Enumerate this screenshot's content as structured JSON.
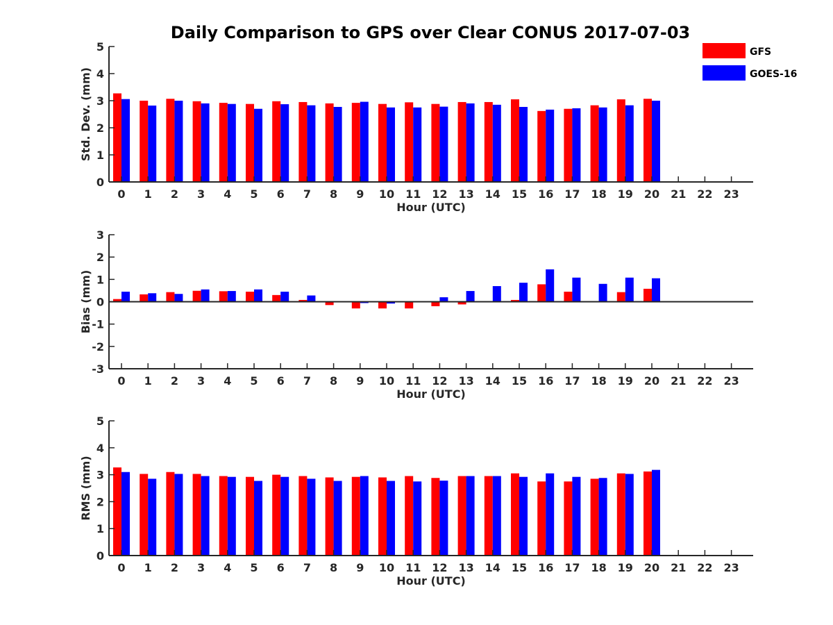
{
  "title": "Daily Comparison to GPS over Clear CONUS 2017-07-03",
  "legend": [
    {
      "label": "GFS",
      "color": "#ff0000"
    },
    {
      "label": "GOES-16",
      "color": "#0000ff"
    }
  ],
  "chart_data": [
    {
      "type": "bar",
      "ylabel": "Std. Dev. (mm)",
      "xlabel": "Hour (UTC)",
      "ylim": [
        0,
        5
      ],
      "yticks": [
        0,
        1,
        2,
        3,
        4,
        5
      ],
      "categories": [
        "0",
        "1",
        "2",
        "3",
        "4",
        "5",
        "6",
        "7",
        "8",
        "9",
        "10",
        "11",
        "12",
        "13",
        "14",
        "15",
        "16",
        "17",
        "18",
        "19",
        "20",
        "21",
        "22",
        "23"
      ],
      "series": [
        {
          "name": "GFS",
          "color": "#ff0000",
          "values": [
            3.27,
            3.0,
            3.07,
            2.98,
            2.92,
            2.88,
            2.98,
            2.95,
            2.9,
            2.92,
            2.88,
            2.94,
            2.88,
            2.95,
            2.95,
            3.05,
            2.62,
            2.7,
            2.83,
            3.05,
            3.07,
            null,
            null,
            null
          ]
        },
        {
          "name": "GOES-16",
          "color": "#0000ff",
          "values": [
            3.06,
            2.82,
            3.0,
            2.9,
            2.88,
            2.7,
            2.87,
            2.83,
            2.77,
            2.96,
            2.75,
            2.75,
            2.78,
            2.9,
            2.85,
            2.77,
            2.67,
            2.72,
            2.75,
            2.83,
            3.0,
            null,
            null,
            null
          ]
        }
      ]
    },
    {
      "type": "bar",
      "ylabel": "Bias (mm)",
      "xlabel": "Hour (UTC)",
      "ylim": [
        -3,
        3
      ],
      "yticks": [
        -3,
        -2,
        -1,
        0,
        1,
        2,
        3
      ],
      "categories": [
        "0",
        "1",
        "2",
        "3",
        "4",
        "5",
        "6",
        "7",
        "8",
        "9",
        "10",
        "11",
        "12",
        "13",
        "14",
        "15",
        "16",
        "17",
        "18",
        "19",
        "20",
        "21",
        "22",
        "23"
      ],
      "series": [
        {
          "name": "GFS",
          "color": "#ff0000",
          "values": [
            0.12,
            0.33,
            0.43,
            0.49,
            0.47,
            0.45,
            0.3,
            0.08,
            -0.15,
            -0.3,
            -0.3,
            -0.3,
            -0.2,
            -0.12,
            0.0,
            0.08,
            0.78,
            0.45,
            0.03,
            0.43,
            0.58,
            null,
            null,
            null
          ]
        },
        {
          "name": "GOES-16",
          "color": "#0000ff",
          "values": [
            0.45,
            0.38,
            0.35,
            0.55,
            0.48,
            0.55,
            0.45,
            0.28,
            0.0,
            -0.06,
            -0.08,
            0.02,
            0.2,
            0.48,
            0.7,
            0.85,
            1.45,
            1.08,
            0.8,
            1.08,
            1.05,
            null,
            null,
            null
          ]
        }
      ]
    },
    {
      "type": "bar",
      "ylabel": "RMS (mm)",
      "xlabel": "Hour (UTC)",
      "ylim": [
        0,
        5
      ],
      "yticks": [
        0,
        1,
        2,
        3,
        4,
        5
      ],
      "categories": [
        "0",
        "1",
        "2",
        "3",
        "4",
        "5",
        "6",
        "7",
        "8",
        "9",
        "10",
        "11",
        "12",
        "13",
        "14",
        "15",
        "16",
        "17",
        "18",
        "19",
        "20",
        "21",
        "22",
        "23"
      ],
      "series": [
        {
          "name": "GFS",
          "color": "#ff0000",
          "values": [
            3.27,
            3.03,
            3.1,
            3.03,
            2.95,
            2.92,
            3.0,
            2.95,
            2.9,
            2.92,
            2.9,
            2.95,
            2.88,
            2.95,
            2.95,
            3.05,
            2.75,
            2.75,
            2.85,
            3.05,
            3.12,
            null,
            null,
            null
          ]
        },
        {
          "name": "GOES-16",
          "color": "#0000ff",
          "values": [
            3.1,
            2.85,
            3.03,
            2.95,
            2.92,
            2.77,
            2.92,
            2.85,
            2.77,
            2.95,
            2.77,
            2.75,
            2.78,
            2.95,
            2.95,
            2.92,
            3.05,
            2.92,
            2.88,
            3.03,
            3.18,
            null,
            null,
            null
          ]
        }
      ]
    }
  ]
}
